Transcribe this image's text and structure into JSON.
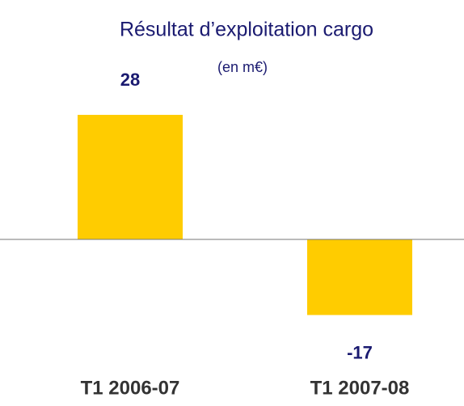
{
  "chart_data": {
    "type": "bar",
    "title": "Résultat d’exploitation cargo",
    "subtitle": "(en m€)",
    "categories": [
      "T1 2006-07",
      "T1 2007-08"
    ],
    "values": [
      28,
      -17
    ],
    "color": "#ffcc00"
  }
}
